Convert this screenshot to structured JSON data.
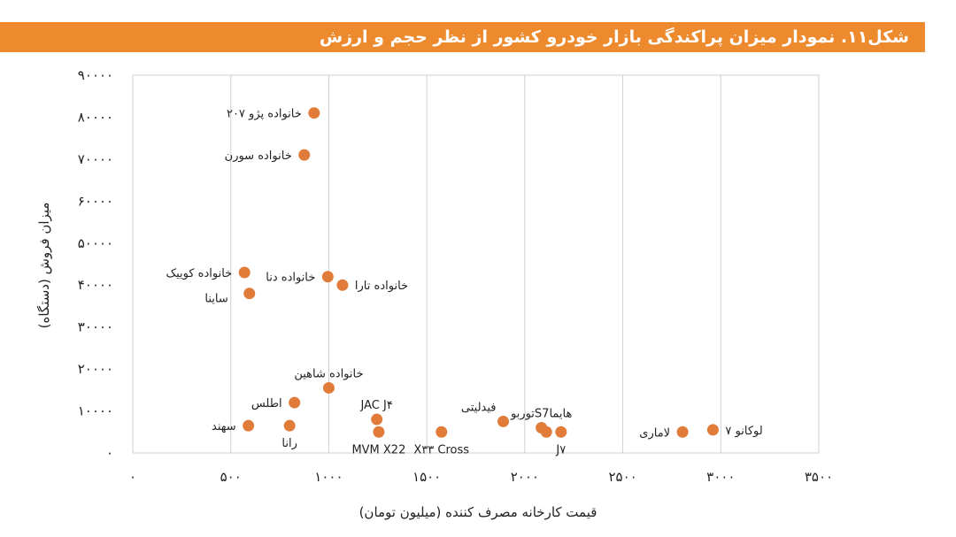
{
  "chart_data": {
    "type": "scatter",
    "title": "شکل۱۱. نمودار میزان پراکندگی بازار خودرو کشور از نظر حجم و ارزش",
    "xlabel": "قیمت کارخانه مصرف کننده (میلیون تومان)",
    "ylabel": "میزان فروش (دستگاه)",
    "xlim": [
      0,
      3500
    ],
    "ylim": [
      0,
      90000
    ],
    "x_ticks": [
      0,
      500,
      1000,
      1500,
      2000,
      2500,
      3000,
      3500
    ],
    "x_tick_labels": [
      "۰",
      "۵۰۰",
      "۱۰۰۰",
      "۱۵۰۰",
      "۲۰۰۰",
      "۲۵۰۰",
      "۳۰۰۰",
      "۳۵۰۰"
    ],
    "y_ticks": [
      0,
      10000,
      20000,
      30000,
      40000,
      50000,
      60000,
      70000,
      80000,
      90000
    ],
    "y_tick_labels": [
      "۰",
      "۱۰۰۰۰",
      "۲۰۰۰۰",
      "۳۰۰۰۰",
      "۴۰۰۰۰",
      "۵۰۰۰۰",
      "۶۰۰۰۰",
      "۷۰۰۰۰",
      "۸۰۰۰۰",
      "۹۰۰۰۰"
    ],
    "grid": "vertical",
    "marker_color": "#e07b39",
    "points": [
      {
        "label": "خانواده پژو ۲۰۷",
        "x": 925,
        "y": 81000,
        "label_side": "left"
      },
      {
        "label": "خانواده سورن",
        "x": 875,
        "y": 71000,
        "label_side": "left"
      },
      {
        "label": "خانواده کوییک",
        "x": 570,
        "y": 43000,
        "label_side": "left"
      },
      {
        "label": "ساینا",
        "x": 595,
        "y": 38000,
        "label_side": "left-below"
      },
      {
        "label": "خانواده دنا",
        "x": 995,
        "y": 42000,
        "label_side": "left"
      },
      {
        "label": "خانواده تارا",
        "x": 1070,
        "y": 40000,
        "label_side": "right"
      },
      {
        "label": "خانواده شاهین",
        "x": 1000,
        "y": 15500,
        "label_side": "above"
      },
      {
        "label": "اطلس",
        "x": 825,
        "y": 12000,
        "label_side": "left"
      },
      {
        "label": "سهند",
        "x": 590,
        "y": 6500,
        "label_side": "left"
      },
      {
        "label": "رانا",
        "x": 800,
        "y": 6500,
        "label_side": "below"
      },
      {
        "label": "JAC J۴",
        "x": 1245,
        "y": 8000,
        "label_side": "above"
      },
      {
        "label": "MVM X22",
        "x": 1255,
        "y": 5000,
        "label_side": "below"
      },
      {
        "label": "X۳۳ Cross",
        "x": 1575,
        "y": 5000,
        "label_side": "below"
      },
      {
        "label": "فیدلیتی",
        "x": 1890,
        "y": 7500,
        "label_side": "above-left"
      },
      {
        "label": "توربوS7هایما",
        "x": 2085,
        "y": 6000,
        "label_side": "above"
      },
      {
        "label": "",
        "x": 2110,
        "y": 5000,
        "label_side": "none"
      },
      {
        "label": "J۷",
        "x": 2185,
        "y": 5000,
        "label_side": "below"
      },
      {
        "label": "لاماری",
        "x": 2805,
        "y": 5000,
        "label_side": "left"
      },
      {
        "label": "لوکانو ۷",
        "x": 2960,
        "y": 5500,
        "label_side": "right"
      }
    ]
  }
}
